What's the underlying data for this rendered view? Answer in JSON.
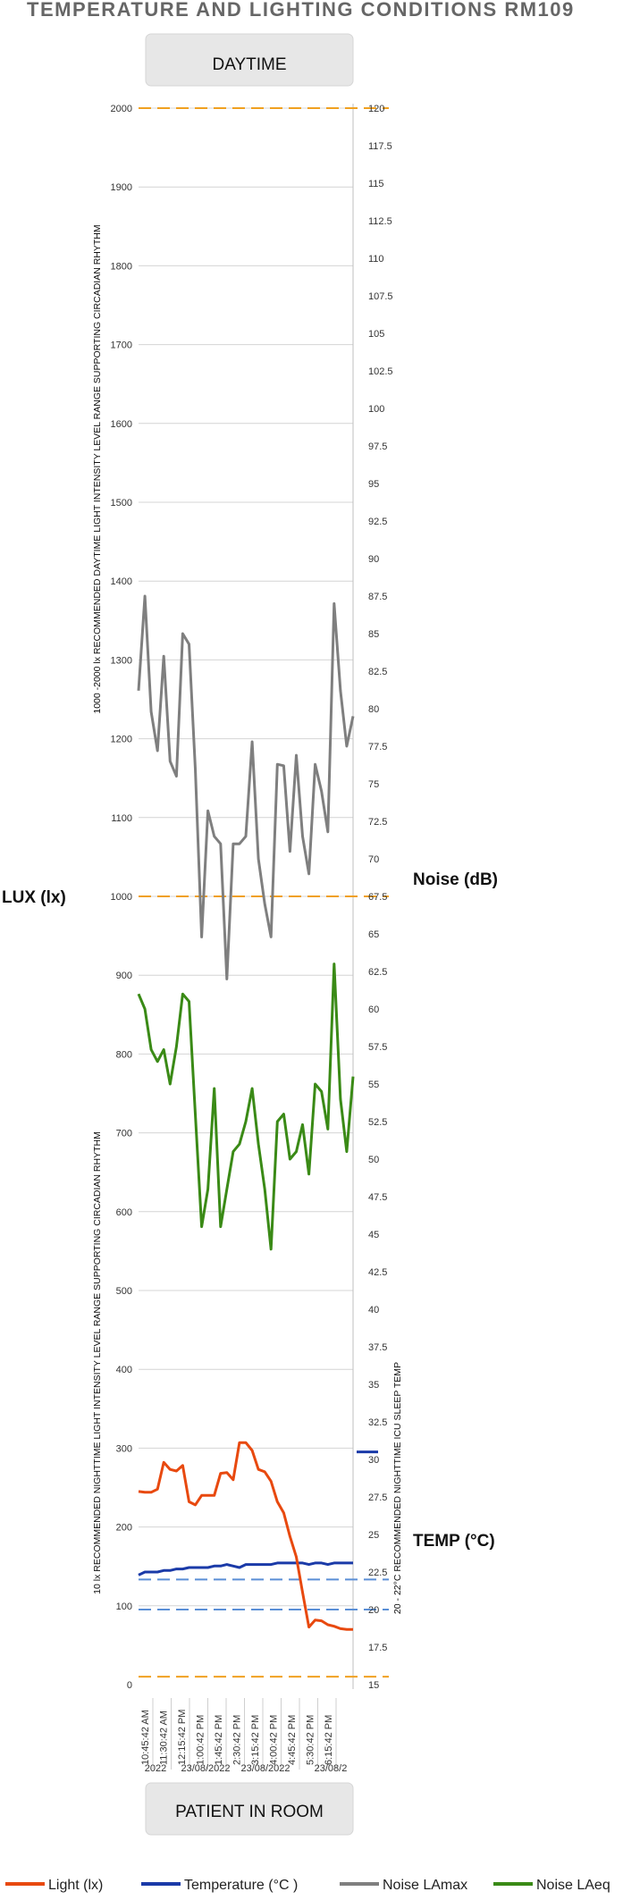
{
  "chart_data": {
    "type": "line",
    "title": "TEMPERATURE AND LIGHTING CONDITIONS RM109",
    "top_band_label": "DAYTIME",
    "bottom_band_label": "PATIENT IN ROOM",
    "left_axis_label": "LUX (lx)",
    "noise_axis_label": "Noise (dB)",
    "temp_axis_label": "TEMP (°C)",
    "daytime_range_label": "1000 -2000 lx RECOMMENDED DAYTIME LIGHT INTENSITY LEVEL  RANGE SUPPORTING CIRCADIAN  RHYTHM",
    "nighttime_range_label": "10 lx RECOMMENDED NIGHTTIME LIGHT INTENSITY LEVEL RANGE SUPPORTING CIRCADIAN RHYTHM",
    "temp_range_label": "20 - 22°C RECOMMENDED NIGHTTIME ICU  SLEEP TEMP",
    "lux_ticks": [
      "0",
      "100",
      "200",
      "300",
      "400",
      "500",
      "600",
      "700",
      "800",
      "900",
      "1000",
      "1100",
      "1200",
      "1300",
      "1400",
      "1500",
      "1600",
      "1700",
      "1800",
      "1900",
      "2000"
    ],
    "right_ticks": [
      "15",
      "17.5",
      "20",
      "22.5",
      "25",
      "27.5",
      "30",
      "32.5",
      "35",
      "37.5",
      "40",
      "42.5",
      "45",
      "47.5",
      "50",
      "52.5",
      "55",
      "57.5",
      "60",
      "62.5",
      "65",
      "67.5",
      "70",
      "72.5",
      "75",
      "77.5",
      "80",
      "82.5",
      "85",
      "87.5",
      "90",
      "92.5",
      "95",
      "97.5",
      "100",
      "102.5",
      "105",
      "107.5",
      "110",
      "112.5",
      "115",
      "117.5",
      "120"
    ],
    "ylim_lux": [
      0,
      2000
    ],
    "ylim_right": [
      15,
      120
    ],
    "x_time_labels": [
      "10:45:42 AM",
      "11:30:42 AM",
      "12:15:42 PM",
      "1:00:42 PM",
      "1:45:42 PM",
      "2:30:42 PM",
      "3:15:42 PM",
      "4:00:42 PM",
      "4:45:42 PM",
      "5:30:42 PM",
      "6:15:42 PM"
    ],
    "x_date_labels": [
      "2022",
      "23/08/2022",
      "23/08/2022",
      "23/08/2"
    ],
    "reference_lines": [
      {
        "axis": "lux",
        "value": 2000,
        "color": "#f0a020",
        "style": "dashed"
      },
      {
        "axis": "lux",
        "value": 1000,
        "color": "#f0a020",
        "style": "dashed"
      },
      {
        "axis": "lux",
        "value": 10,
        "color": "#f0a020",
        "style": "dashed"
      },
      {
        "axis": "right",
        "value": 22,
        "color": "#5b8fd6",
        "style": "dashed"
      },
      {
        "axis": "right",
        "value": 20,
        "color": "#5b8fd6",
        "style": "dashed"
      }
    ],
    "temp_marker": {
      "value": 30.5,
      "color": "#1a3aa8"
    },
    "grid": true,
    "legend_position": "bottom",
    "series": [
      {
        "name": "Light   (lx)",
        "axis": "lux",
        "color": "#e8490f",
        "values": [
          245,
          244,
          244,
          248,
          282,
          273,
          271,
          278,
          232,
          228,
          240,
          240,
          240,
          268,
          269,
          260,
          307,
          307,
          297,
          273,
          270,
          258,
          232,
          218,
          188,
          162,
          117,
          73,
          82,
          81,
          76,
          74,
          71,
          70,
          70
        ]
      },
      {
        "name": "Temperature   (°C )",
        "axis": "right",
        "color": "#1a3aa8",
        "values": [
          22.3,
          22.5,
          22.5,
          22.5,
          22.6,
          22.6,
          22.7,
          22.7,
          22.8,
          22.8,
          22.8,
          22.8,
          22.9,
          22.9,
          23.0,
          22.9,
          22.8,
          23.0,
          23.0,
          23.0,
          23.0,
          23.0,
          23.1,
          23.1,
          23.1,
          23.1,
          23.1,
          23.0,
          23.1,
          23.1,
          23.0,
          23.1,
          23.1,
          23.1,
          23.1
        ]
      },
      {
        "name": "Noise LAmax",
        "axis": "right",
        "color": "#7f7f7f",
        "values": [
          81.2,
          87.5,
          79.8,
          77.2,
          83.5,
          76.5,
          75.5,
          85.0,
          84.3,
          76.0,
          64.8,
          73.2,
          71.5,
          71.0,
          62.0,
          71.0,
          71.0,
          71.5,
          77.8,
          70.0,
          67.0,
          64.8,
          76.3,
          76.2,
          70.5,
          76.9,
          71.5,
          69.0,
          76.3,
          74.5,
          71.8,
          87.0,
          81.2,
          77.5,
          79.5
        ]
      },
      {
        "name": "Noise LAeq",
        "axis": "right",
        "color": "#3a8a16",
        "values": [
          61.0,
          60.0,
          57.3,
          56.5,
          57.3,
          55.0,
          57.5,
          61.0,
          60.5,
          53.0,
          45.5,
          48.0,
          54.7,
          45.5,
          48.0,
          50.5,
          51.0,
          52.5,
          54.7,
          51.0,
          48.0,
          44.0,
          52.5,
          53.0,
          50.0,
          50.5,
          52.3,
          49.0,
          55.0,
          54.5,
          52.0,
          63.0,
          54.0,
          50.5,
          55.5
        ]
      }
    ]
  }
}
